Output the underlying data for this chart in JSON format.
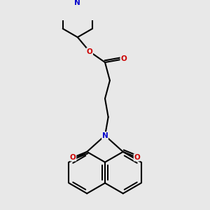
{
  "bg_color": "#e8e8e8",
  "bond_color": "#000000",
  "N_color": "#0000cc",
  "O_color": "#cc0000",
  "lw": 1.5,
  "fig_size": [
    3.0,
    3.0
  ],
  "dpi": 100,
  "xlim": [
    -4.5,
    4.5
  ],
  "ylim": [
    -5.5,
    3.5
  ]
}
